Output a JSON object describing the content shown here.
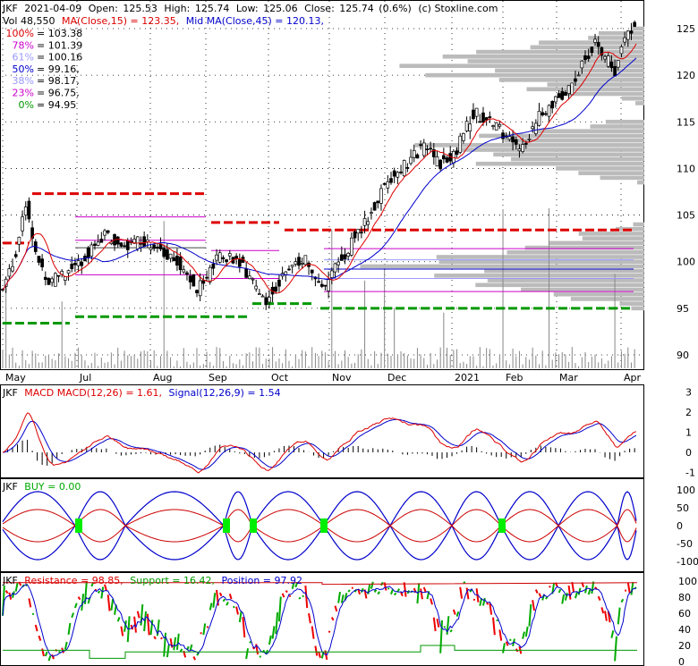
{
  "header": {
    "ticker": "JKF",
    "date": "2021-04-09",
    "open_label": "Open:",
    "open": "125.53",
    "high_label": "High:",
    "high": "125.74",
    "low_label": "Low:",
    "low": "125.06",
    "close_label": "Close:",
    "close": "125.74",
    "change": "(0.6%)",
    "source": "(c) Stoxline.com",
    "volume": "Vol 48,550",
    "ma15": "MA(Close,15) = 123.35,",
    "ma45": "Mid MA(Close,45) = 120.13,"
  },
  "colors": {
    "ma15": "#dd0000",
    "ma45": "#0000cc",
    "up": "#000000",
    "resistance": "#ee0000",
    "support": "#009900",
    "volume_profile": "#bbbbbb",
    "k_line": "#00aa00"
  },
  "fib_levels": [
    {
      "pct": "100%",
      "value": "= 103.38",
      "color": "#dd0000"
    },
    {
      "pct": "78%",
      "value": "= 101.39",
      "color": "#cc00cc"
    },
    {
      "pct": "61%",
      "value": "= 100.16",
      "color": "#9999ff"
    },
    {
      "pct": "50%",
      "value": "= 99.16,",
      "color": "#0000cc"
    },
    {
      "pct": "38%",
      "value": "= 98.17,",
      "color": "#9999ff"
    },
    {
      "pct": "23%",
      "value": "= 96.75,",
      "color": "#cc00cc"
    },
    {
      "pct": "0%",
      "value": "= 94.95",
      "color": "#009900"
    }
  ],
  "macd_panel": {
    "ticker": "JKF",
    "label": "MACD",
    "macd": "MACD(12,26) = 1.61,",
    "signal": "Signal(12,26,9) = 1.54"
  },
  "buy_panel": {
    "ticker": "JKF",
    "buy": "BUY = 0.00"
  },
  "sr_panel": {
    "ticker": "JKF",
    "resistance": "Resistance = 98.85,",
    "support": "Support = 16.42,",
    "position": "Position = 97.92"
  },
  "chart_data": {
    "type": "candlestick",
    "months": [
      "May",
      "Jul",
      "Aug",
      "Sep",
      "Oct",
      "Nov",
      "Dec",
      "2021",
      "Feb",
      "Mar",
      "Apr"
    ],
    "price_axis": [
      "125",
      "120",
      "115",
      "110",
      "105",
      "100",
      "95",
      "90"
    ],
    "macd_axis": [
      "3",
      "2",
      "1",
      "0",
      "-1"
    ],
    "buy_axis": [
      "100",
      "50",
      "0",
      "-50",
      "-100"
    ],
    "sr_axis": [
      "100",
      "80",
      "60",
      "40",
      "20",
      "0"
    ],
    "price_keypoints": [
      [
        0,
        97
      ],
      [
        8,
        101
      ],
      [
        14,
        106.5
      ],
      [
        20,
        101
      ],
      [
        28,
        98
      ],
      [
        40,
        99
      ],
      [
        50,
        100.5
      ],
      [
        62,
        103
      ],
      [
        72,
        101.5
      ],
      [
        82,
        102.5
      ],
      [
        92,
        102
      ],
      [
        102,
        100.5
      ],
      [
        112,
        99
      ],
      [
        118,
        97
      ],
      [
        124,
        98
      ],
      [
        132,
        101
      ],
      [
        142,
        100
      ],
      [
        150,
        98.5
      ],
      [
        160,
        95.5
      ],
      [
        166,
        97.5
      ],
      [
        174,
        99
      ],
      [
        184,
        100.5
      ],
      [
        188,
        98.5
      ],
      [
        196,
        97
      ],
      [
        204,
        100
      ],
      [
        216,
        103
      ],
      [
        226,
        106
      ],
      [
        236,
        109
      ],
      [
        246,
        110.5
      ],
      [
        256,
        112.5
      ],
      [
        266,
        110.5
      ],
      [
        276,
        112
      ],
      [
        286,
        116
      ],
      [
        296,
        115
      ],
      [
        306,
        113.5
      ],
      [
        316,
        112
      ],
      [
        326,
        115.5
      ],
      [
        336,
        117.5
      ],
      [
        346,
        118.5
      ],
      [
        352,
        121
      ],
      [
        360,
        123.5
      ],
      [
        366,
        122
      ],
      [
        372,
        120.5
      ],
      [
        378,
        123.5
      ],
      [
        384,
        125.7
      ]
    ],
    "ylim": [
      89,
      127
    ]
  }
}
